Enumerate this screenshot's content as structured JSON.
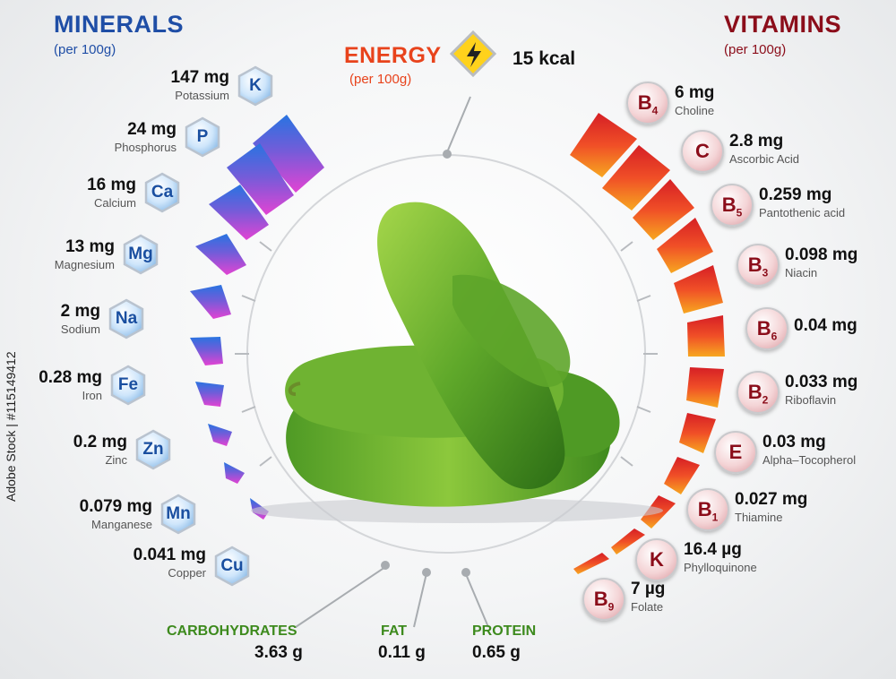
{
  "minerals": {
    "title": "MINERALS",
    "subtitle": "(per 100g)",
    "color": "#1f4ea6",
    "items": [
      {
        "symbol": "K",
        "value": "147 mg",
        "name": "Potassium"
      },
      {
        "symbol": "P",
        "value": "24 mg",
        "name": "Phosphorus"
      },
      {
        "symbol": "Ca",
        "value": "16 mg",
        "name": "Calcium"
      },
      {
        "symbol": "Mg",
        "value": "13 mg",
        "name": "Magnesium"
      },
      {
        "symbol": "Na",
        "value": "2 mg",
        "name": "Sodium"
      },
      {
        "symbol": "Fe",
        "value": "0.28 mg",
        "name": "Iron"
      },
      {
        "symbol": "Zn",
        "value": "0.2 mg",
        "name": "Zinc"
      },
      {
        "symbol": "Mn",
        "value": "0.079 mg",
        "name": "Manganese"
      },
      {
        "symbol": "Cu",
        "value": "0.041 mg",
        "name": "Copper"
      }
    ]
  },
  "vitamins": {
    "title": "VITAMINS",
    "subtitle": "(per 100g)",
    "color": "#8b0d1a",
    "items": [
      {
        "symbol": "B",
        "sub": "4",
        "value": "6 mg",
        "name": "Choline"
      },
      {
        "symbol": "C",
        "sub": "",
        "value": "2.8 mg",
        "name": "Ascorbic Acid"
      },
      {
        "symbol": "B",
        "sub": "5",
        "value": "0.259 mg",
        "name": "Pantothenic acid"
      },
      {
        "symbol": "B",
        "sub": "3",
        "value": "0.098 mg",
        "name": "Niacin"
      },
      {
        "symbol": "B",
        "sub": "6",
        "value": "0.04 mg",
        "name": ""
      },
      {
        "symbol": "B",
        "sub": "2",
        "value": "0.033 mg",
        "name": "Riboflavin"
      },
      {
        "symbol": "E",
        "sub": "",
        "value": "0.03 mg",
        "name": "Alpha–Tocopherol"
      },
      {
        "symbol": "B",
        "sub": "1",
        "value": "0.027 mg",
        "name": "Thiamine"
      },
      {
        "symbol": "K",
        "sub": "",
        "value": "16.4 µg",
        "name": "Phylloquinone"
      },
      {
        "symbol": "B",
        "sub": "9",
        "value": "7 µg",
        "name": "Folate"
      }
    ]
  },
  "energy": {
    "title": "ENERGY",
    "subtitle": "(per 100g)",
    "value": "15 kcal",
    "color": "#e8431c"
  },
  "macros": [
    {
      "label": "CARBOHYDRATES",
      "value": "3.63 g"
    },
    {
      "label": "FAT",
      "value": "0.11 g"
    },
    {
      "label": "PROTEIN",
      "value": "0.65 g"
    }
  ],
  "macro_color": "#3d8a1d",
  "watermark": "Adobe Stock | #115149412",
  "image": {
    "subject": "cucumbers-illustration"
  }
}
